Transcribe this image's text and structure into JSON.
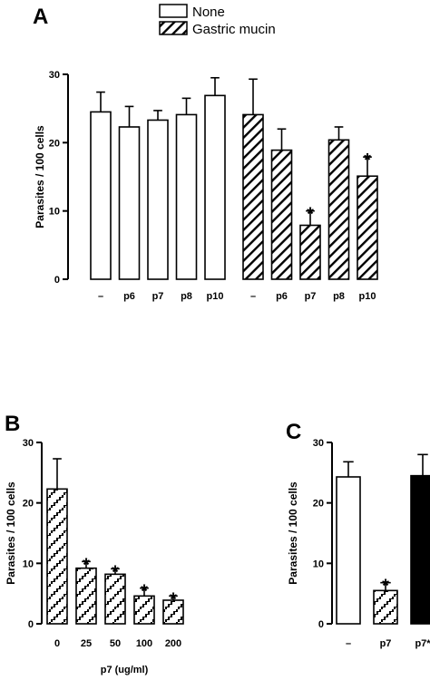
{
  "chart_data": [
    {
      "panel": "A",
      "type": "bar",
      "ylabel": "Parasites / 100 cells",
      "ylim": [
        0,
        30
      ],
      "yticks": [
        "0",
        "10",
        "20",
        "30"
      ],
      "legend": [
        {
          "label": "None",
          "fill": "open"
        },
        {
          "label": "Gastric mucin",
          "fill": "hatched"
        }
      ],
      "series": [
        {
          "name": "None",
          "fill": "open",
          "categories": [
            "–",
            "p6",
            "p7",
            "p8",
            "p10"
          ],
          "values": [
            24.5,
            22.3,
            23.3,
            24.1,
            26.9
          ],
          "errors": [
            2.9,
            3.0,
            1.4,
            2.4,
            2.6
          ],
          "significant": [
            false,
            false,
            false,
            false,
            false
          ]
        },
        {
          "name": "Gastric mucin",
          "fill": "hatched",
          "categories": [
            "–",
            "p6",
            "p7",
            "p8",
            "p10"
          ],
          "values": [
            24.1,
            18.9,
            7.9,
            20.4,
            15.1
          ],
          "errors": [
            5.2,
            3.1,
            2.1,
            1.9,
            2.8
          ],
          "significant": [
            false,
            false,
            true,
            false,
            true
          ]
        }
      ],
      "significance_label": "*"
    },
    {
      "panel": "B",
      "type": "bar",
      "ylabel": "Parasites / 100 cells",
      "xlabel": "p7 (ug/ml)",
      "ylim": [
        0,
        30
      ],
      "yticks": [
        "0",
        "10",
        "20",
        "30"
      ],
      "categories": [
        "0",
        "25",
        "50",
        "100",
        "200"
      ],
      "values": [
        22.3,
        9.2,
        8.2,
        4.6,
        3.9
      ],
      "errors": [
        5.0,
        1.1,
        0.9,
        1.3,
        0.7
      ],
      "significant": [
        false,
        true,
        true,
        true,
        true
      ],
      "fill": "hatched",
      "significance_label": "*"
    },
    {
      "panel": "C",
      "type": "bar",
      "ylabel": "Parasites / 100 cells",
      "ylim": [
        0,
        30
      ],
      "yticks": [
        "0",
        "10",
        "20",
        "30"
      ],
      "categories": [
        "–",
        "p7",
        "p7*"
      ],
      "values": [
        24.3,
        5.5,
        24.5
      ],
      "errors": [
        2.5,
        1.3,
        3.5
      ],
      "fills": [
        "open",
        "hatched",
        "solid"
      ],
      "significant": [
        false,
        true,
        false
      ],
      "significance_label": "*"
    }
  ]
}
